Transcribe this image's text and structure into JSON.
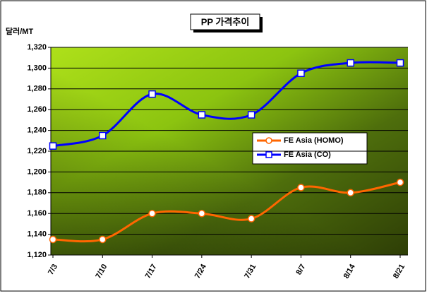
{
  "chart_data": {
    "type": "line",
    "title": "PP 가격추이",
    "y_label": "달러/MT",
    "categories": [
      "7/3",
      "7/10",
      "7/17",
      "7/24",
      "7/31",
      "8/7",
      "8/14",
      "8/21"
    ],
    "series": [
      {
        "name": "FE Asia (HOMO)",
        "color": "#ff6600",
        "values": [
          1135,
          1135,
          1160,
          1160,
          1155,
          1185,
          1180,
          1190
        ]
      },
      {
        "name": "FE Asia (CO)",
        "color": "#0000ff",
        "values": [
          1225,
          1235,
          1275,
          1255,
          1255,
          1295,
          1305,
          1305
        ]
      }
    ],
    "ylim": [
      1120,
      1320
    ],
    "yticks": [
      {
        "value": 1120,
        "label": "1,120"
      },
      {
        "value": 1140,
        "label": "1,140"
      },
      {
        "value": 1160,
        "label": "1,160"
      },
      {
        "value": 1180,
        "label": "1,180"
      },
      {
        "value": 1200,
        "label": "1,200"
      },
      {
        "value": 1220,
        "label": "1,220"
      },
      {
        "value": 1240,
        "label": "1,240"
      },
      {
        "value": 1260,
        "label": "1,260"
      },
      {
        "value": 1280,
        "label": "1,280"
      },
      {
        "value": 1300,
        "label": "1,300"
      },
      {
        "value": 1320,
        "label": "1,320"
      }
    ],
    "grid": true,
    "smooth": true
  }
}
